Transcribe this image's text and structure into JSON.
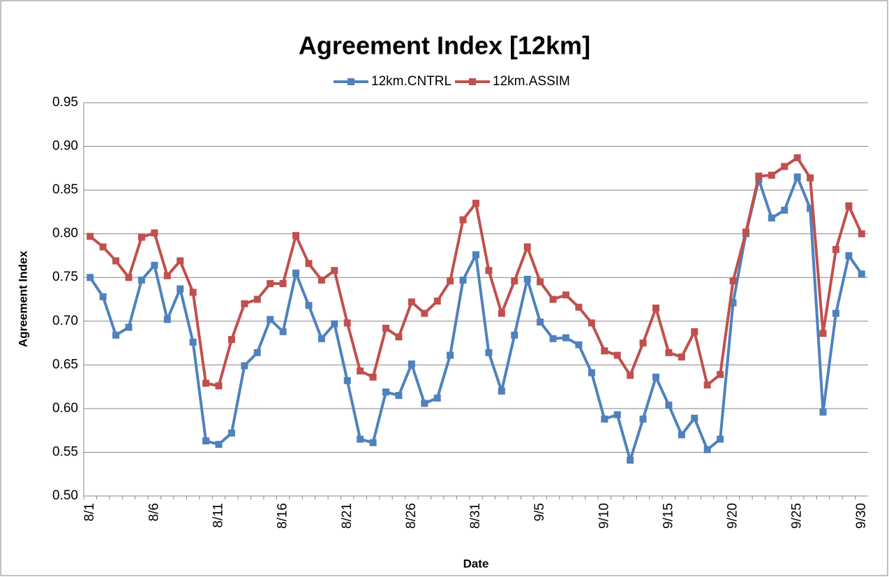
{
  "chart_data": {
    "type": "line",
    "title": "Agreement Index [12km]",
    "x_label": "Date",
    "y_label": "Agreement Index",
    "categories": [
      "8/1",
      null,
      null,
      null,
      null,
      "8/6",
      null,
      null,
      null,
      null,
      "8/11",
      null,
      null,
      null,
      null,
      "8/16",
      null,
      null,
      null,
      null,
      "8/21",
      null,
      null,
      null,
      null,
      "8/26",
      null,
      null,
      null,
      null,
      "8/31",
      null,
      null,
      null,
      null,
      "9/5",
      null,
      null,
      null,
      null,
      "9/10",
      null,
      null,
      null,
      null,
      "9/15",
      null,
      null,
      null,
      null,
      "9/20",
      null,
      null,
      null,
      null,
      "9/25",
      null,
      null,
      null,
      null,
      "9/30"
    ],
    "series": [
      {
        "name": "12km.CNTRL",
        "color": "#4f81bd",
        "values": [
          0.75,
          0.728,
          0.684,
          0.693,
          0.747,
          0.764,
          0.702,
          0.737,
          0.676,
          0.563,
          0.559,
          0.572,
          0.649,
          0.664,
          0.702,
          0.688,
          0.755,
          0.718,
          0.68,
          0.697,
          0.632,
          0.565,
          0.561,
          0.619,
          0.615,
          0.651,
          0.606,
          0.612,
          0.661,
          0.747,
          0.776,
          0.664,
          0.62,
          0.684,
          0.748,
          0.699,
          0.68,
          0.681,
          0.673,
          0.641,
          0.588,
          0.593,
          0.541,
          0.588,
          0.636,
          0.604,
          0.57,
          0.589,
          0.553,
          0.565,
          0.721,
          0.8,
          0.862,
          0.818,
          0.827,
          0.865,
          0.829,
          0.596,
          0.709,
          0.775,
          0.754
        ]
      },
      {
        "name": "12km.ASSIM",
        "color": "#c0504d",
        "values": [
          0.797,
          0.785,
          0.769,
          0.75,
          0.796,
          0.801,
          0.752,
          0.769,
          0.733,
          0.629,
          0.626,
          0.679,
          0.72,
          0.725,
          0.743,
          0.743,
          0.798,
          0.766,
          0.747,
          0.758,
          0.698,
          0.643,
          0.636,
          0.692,
          0.682,
          0.722,
          0.709,
          0.723,
          0.746,
          0.816,
          0.835,
          0.758,
          0.709,
          0.746,
          0.785,
          0.745,
          0.725,
          0.73,
          0.716,
          0.698,
          0.666,
          0.661,
          0.638,
          0.675,
          0.715,
          0.664,
          0.659,
          0.688,
          0.627,
          0.639,
          0.746,
          0.802,
          0.866,
          0.867,
          0.877,
          0.887,
          0.864,
          0.686,
          0.782,
          0.832,
          0.8
        ]
      }
    ],
    "ylim": [
      0.5,
      0.95
    ],
    "yticks": [
      {
        "value": 0.5,
        "label": "0.50"
      },
      0.55,
      {
        "value": 0.6,
        "label": "0.60"
      },
      0.65,
      {
        "value": 0.7,
        "label": "0.70"
      },
      0.75,
      {
        "value": 0.8,
        "label": "0.80"
      },
      0.85,
      {
        "value": 0.9,
        "label": "0.90"
      },
      0.95
    ],
    "grid": true,
    "legend": "top"
  }
}
